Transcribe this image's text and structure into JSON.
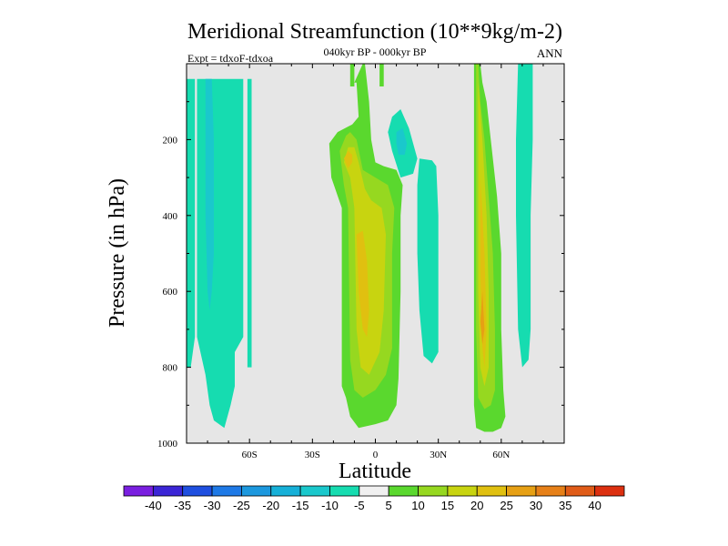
{
  "chart_data": {
    "type": "heatmap",
    "title": "Meridional Streamfunction (10**9kg/m-2)",
    "subtitle_center": "040kyr BP - 000kyr BP",
    "subtitle_left": "Expt = tdxoF-tdxoa",
    "subtitle_right": "ANN",
    "xlabel": "Latitude",
    "ylabel": "Pressure (in hPa)",
    "xlim": [
      -90,
      90
    ],
    "ylim": [
      1000,
      0
    ],
    "x_ticks": [
      {
        "v": -60,
        "label": "60S"
      },
      {
        "v": -30,
        "label": "30S"
      },
      {
        "v": 0,
        "label": "0"
      },
      {
        "v": 30,
        "label": "30N"
      },
      {
        "v": 60,
        "label": "60N"
      }
    ],
    "y_ticks": [
      {
        "v": 200,
        "label": "200"
      },
      {
        "v": 400,
        "label": "400"
      },
      {
        "v": 600,
        "label": "600"
      },
      {
        "v": 800,
        "label": "800"
      },
      {
        "v": 1000,
        "label": "1000"
      }
    ],
    "background_color": "#e6e6e6",
    "colorbar": {
      "colors": [
        "#7a1fe0",
        "#3b25d6",
        "#1f4fe0",
        "#1e79e6",
        "#1c98de",
        "#16b0d8",
        "#1ac8cc",
        "#16dcb0",
        "#f0f0f0",
        "#5ad82e",
        "#96d820",
        "#c8d410",
        "#e0c010",
        "#e6a014",
        "#e68018",
        "#e05c18",
        "#dc3010"
      ],
      "labels": [
        "-40",
        "-35",
        "-30",
        "-25",
        "-20",
        "-15",
        "-10",
        "-5",
        "5",
        "10",
        "15",
        "20",
        "25",
        "30",
        "35",
        "40"
      ]
    },
    "regions": [
      {
        "name": "sh-teal-band",
        "value": -7.5,
        "pts": [
          [
            -90,
            40
          ],
          [
            -85,
            40
          ],
          [
            -85,
            720
          ],
          [
            -81,
            820
          ],
          [
            -79,
            900
          ],
          [
            -77,
            940
          ],
          [
            -72,
            960
          ],
          [
            -69,
            900
          ],
          [
            -67,
            850
          ],
          [
            -67,
            760
          ],
          [
            -63,
            720
          ],
          [
            -63,
            40
          ],
          [
            -61,
            40
          ],
          [
            -61,
            800
          ],
          [
            -59,
            800
          ],
          [
            -59,
            40
          ],
          [
            -90,
            40
          ],
          [
            -90,
            800
          ]
        ]
      },
      {
        "name": "sh-teal-band-left",
        "value": -7.5,
        "pts": [
          [
            -90,
            40
          ],
          [
            -86,
            40
          ],
          [
            -86,
            720
          ],
          [
            -88,
            800
          ],
          [
            -90,
            800
          ]
        ]
      },
      {
        "name": "sh-blue-core",
        "value": -12.5,
        "pts": [
          [
            -81,
            40
          ],
          [
            -78,
            40
          ],
          [
            -77,
            200
          ],
          [
            -77,
            500
          ],
          [
            -78,
            600
          ],
          [
            -79,
            650
          ],
          [
            -80,
            600
          ],
          [
            -81,
            400
          ]
        ]
      },
      {
        "name": "tropical-green",
        "value": 7.5,
        "pts": [
          [
            -10,
            50
          ],
          [
            -9,
            50
          ],
          [
            -8,
            140
          ],
          [
            -11,
            160
          ],
          [
            -18,
            180
          ],
          [
            -22,
            210
          ],
          [
            -21,
            300
          ],
          [
            -16,
            380
          ],
          [
            -16,
            850
          ],
          [
            -14,
            880
          ],
          [
            -12,
            930
          ],
          [
            -8,
            960
          ],
          [
            0,
            950
          ],
          [
            6,
            940
          ],
          [
            10,
            900
          ],
          [
            11,
            830
          ],
          [
            12,
            600
          ],
          [
            12,
            400
          ],
          [
            13,
            320
          ],
          [
            10,
            280
          ],
          [
            4,
            270
          ],
          [
            0,
            260
          ],
          [
            -2,
            200
          ],
          [
            -3,
            100
          ],
          [
            -4,
            50
          ],
          [
            -5,
            0
          ],
          [
            -6,
            0
          ]
        ]
      },
      {
        "name": "tropical-green-top",
        "value": 7.5,
        "pts": [
          [
            -12,
            0
          ],
          [
            -10,
            0
          ],
          [
            -10,
            60
          ],
          [
            -12,
            60
          ]
        ]
      },
      {
        "name": "tropical-lightgreen",
        "value": 12.5,
        "pts": [
          [
            -14,
            190
          ],
          [
            -17,
            230
          ],
          [
            -15,
            320
          ],
          [
            -13,
            380
          ],
          [
            -12,
            780
          ],
          [
            -10,
            860
          ],
          [
            -6,
            880
          ],
          [
            0,
            860
          ],
          [
            5,
            820
          ],
          [
            8,
            750
          ],
          [
            8,
            500
          ],
          [
            9,
            380
          ],
          [
            6,
            320
          ],
          [
            0,
            300
          ],
          [
            -6,
            280
          ],
          [
            -9,
            200
          ],
          [
            -12,
            180
          ]
        ]
      },
      {
        "name": "tropical-yellow",
        "value": 17.5,
        "pts": [
          [
            -13,
            220
          ],
          [
            -15,
            260
          ],
          [
            -12,
            300
          ],
          [
            -10,
            380
          ],
          [
            -9,
            700
          ],
          [
            -7,
            800
          ],
          [
            -3,
            820
          ],
          [
            2,
            760
          ],
          [
            4,
            650
          ],
          [
            5,
            450
          ],
          [
            3,
            380
          ],
          [
            -2,
            360
          ],
          [
            -5,
            330
          ],
          [
            -8,
            260
          ],
          [
            -10,
            220
          ]
        ]
      },
      {
        "name": "tropical-orange",
        "value": 22.5,
        "pts": [
          [
            -13,
            230
          ],
          [
            -15,
            250
          ],
          [
            -13,
            275
          ],
          [
            -11,
            260
          ],
          [
            -11,
            240
          ]
        ]
      },
      {
        "name": "tropical-orange-2",
        "value": 22.5,
        "pts": [
          [
            -9,
            450
          ],
          [
            -8,
            600
          ],
          [
            -6,
            700
          ],
          [
            -4,
            720
          ],
          [
            -3,
            650
          ],
          [
            -4,
            520
          ],
          [
            -6,
            440
          ]
        ]
      },
      {
        "name": "nh-mid-green",
        "value": 7.5,
        "pts": [
          [
            47,
            0
          ],
          [
            50,
            0
          ],
          [
            51,
            50
          ],
          [
            53,
            100
          ],
          [
            55,
            200
          ],
          [
            58,
            350
          ],
          [
            60,
            500
          ],
          [
            60,
            700
          ],
          [
            61,
            860
          ],
          [
            62,
            930
          ],
          [
            60,
            960
          ],
          [
            56,
            970
          ],
          [
            52,
            970
          ],
          [
            48,
            960
          ],
          [
            47,
            900
          ],
          [
            47,
            600
          ],
          [
            47,
            300
          ],
          [
            47,
            100
          ]
        ]
      },
      {
        "name": "nh-mid-lightgreen",
        "value": 12.5,
        "pts": [
          [
            48,
            0
          ],
          [
            49,
            0
          ],
          [
            50,
            100
          ],
          [
            52,
            200
          ],
          [
            54,
            350
          ],
          [
            56,
            500
          ],
          [
            57,
            700
          ],
          [
            57,
            860
          ],
          [
            55,
            900
          ],
          [
            52,
            910
          ],
          [
            49,
            880
          ],
          [
            48,
            700
          ]
        ]
      },
      {
        "name": "nh-mid-yellow",
        "value": 17.5,
        "pts": [
          [
            49,
            50
          ],
          [
            51,
            200
          ],
          [
            53,
            400
          ],
          [
            54,
            600
          ],
          [
            54,
            800
          ],
          [
            52,
            850
          ],
          [
            50,
            800
          ],
          [
            49,
            600
          ]
        ]
      },
      {
        "name": "nh-mid-orange",
        "value": 22.5,
        "pts": [
          [
            50,
            300
          ],
          [
            52,
            500
          ],
          [
            53,
            700
          ],
          [
            52,
            800
          ],
          [
            51,
            750
          ],
          [
            50,
            550
          ]
        ]
      },
      {
        "name": "nh-mid-red",
        "value": 27.5,
        "pts": [
          [
            51,
            600
          ],
          [
            52,
            700
          ],
          [
            51,
            740
          ],
          [
            50,
            680
          ]
        ]
      },
      {
        "name": "nh-high-teal",
        "value": -7.5,
        "pts": [
          [
            68,
            0
          ],
          [
            75,
            0
          ],
          [
            75,
            200
          ],
          [
            74,
            400
          ],
          [
            74,
            700
          ],
          [
            73,
            780
          ],
          [
            70,
            800
          ],
          [
            68,
            700
          ],
          [
            67,
            400
          ],
          [
            67,
            200
          ]
        ]
      },
      {
        "name": "nh-teal-lower",
        "value": -7.5,
        "pts": [
          [
            21,
            250
          ],
          [
            27,
            255
          ],
          [
            29,
            270
          ],
          [
            30,
            400
          ],
          [
            30,
            600
          ],
          [
            30,
            760
          ],
          [
            27,
            790
          ],
          [
            23,
            770
          ],
          [
            21,
            650
          ],
          [
            20,
            500
          ],
          [
            20,
            320
          ]
        ]
      },
      {
        "name": "eq-teal",
        "value": -7.5,
        "pts": [
          [
            8,
            140
          ],
          [
            12,
            120
          ],
          [
            16,
            170
          ],
          [
            20,
            250
          ],
          [
            18,
            290
          ],
          [
            12,
            300
          ],
          [
            8,
            230
          ],
          [
            6,
            180
          ]
        ]
      },
      {
        "name": "eq-blue",
        "value": -12.5,
        "pts": [
          [
            10,
            180
          ],
          [
            13,
            170
          ],
          [
            15,
            210
          ],
          [
            14,
            240
          ],
          [
            11,
            240
          ],
          [
            10,
            210
          ]
        ]
      },
      {
        "name": "eq-green-top",
        "value": 7.5,
        "pts": [
          [
            2,
            0
          ],
          [
            4,
            0
          ],
          [
            4,
            60
          ],
          [
            2,
            60
          ]
        ]
      }
    ]
  }
}
